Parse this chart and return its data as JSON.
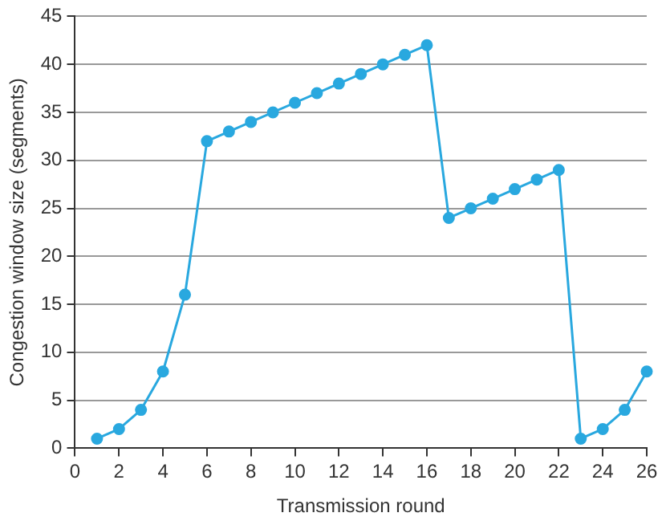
{
  "chart_data": {
    "type": "line",
    "xlabel": "Transmission round",
    "ylabel": "Congestion window size (segments)",
    "x": [
      1,
      2,
      3,
      4,
      5,
      6,
      7,
      8,
      9,
      10,
      11,
      12,
      13,
      14,
      15,
      16,
      17,
      18,
      19,
      20,
      21,
      22,
      23,
      24,
      25,
      26
    ],
    "series": [
      {
        "color": "#29a8df",
        "values": [
          1,
          2,
          4,
          8,
          16,
          32,
          33,
          34,
          35,
          36,
          37,
          38,
          39,
          40,
          41,
          42,
          24,
          25,
          26,
          27,
          28,
          29,
          1,
          2,
          4,
          8
        ]
      }
    ],
    "xlim": [
      0,
      26
    ],
    "xticks": [
      0,
      2,
      4,
      6,
      8,
      10,
      12,
      14,
      16,
      18,
      20,
      22,
      24,
      26
    ],
    "ylim": [
      0,
      45
    ],
    "yticks": [
      0,
      5,
      10,
      15,
      20,
      25,
      30,
      35,
      40,
      45
    ],
    "grid": "y",
    "marker": "circle",
    "line_style": "solid",
    "legend": false
  }
}
